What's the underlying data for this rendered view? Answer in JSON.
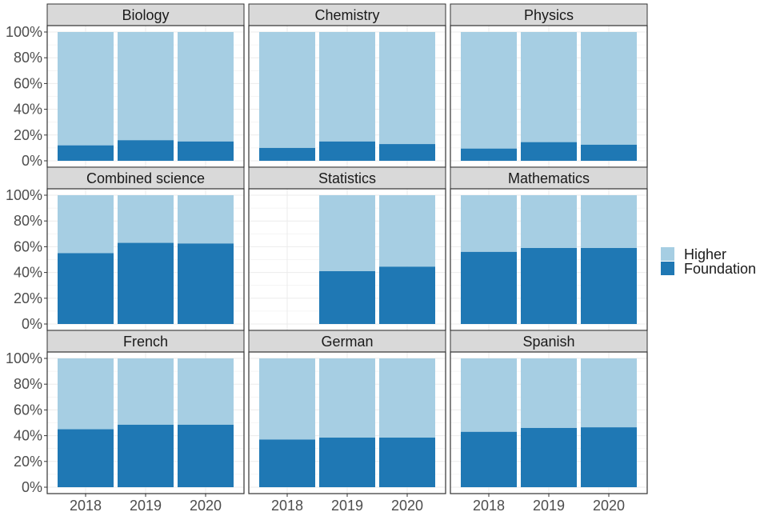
{
  "chart_data": {
    "type": "bar",
    "stacked": true,
    "categories": [
      "2018",
      "2019",
      "2020"
    ],
    "y_tick_labels": [
      "0%",
      "20%",
      "40%",
      "60%",
      "80%",
      "100%"
    ],
    "ylim": [
      0,
      100
    ],
    "legend": {
      "position": "right",
      "entries": [
        {
          "label": "Higher",
          "color": "#a6cee3"
        },
        {
          "label": "Foundation",
          "color": "#1f78b4"
        }
      ]
    },
    "panels": [
      {
        "title": "Biology",
        "foundation": [
          12,
          16,
          15
        ],
        "higher": [
          88,
          84,
          85
        ]
      },
      {
        "title": "Chemistry",
        "foundation": [
          10,
          15,
          13
        ],
        "higher": [
          90,
          85,
          87
        ]
      },
      {
        "title": "Physics",
        "foundation": [
          9.5,
          14.5,
          12.5
        ],
        "higher": [
          90.5,
          85.5,
          87.5
        ]
      },
      {
        "title": "Combined science",
        "foundation": [
          55,
          63,
          62.5
        ],
        "higher": [
          45,
          37,
          37.5
        ]
      },
      {
        "title": "Statistics",
        "foundation": [
          null,
          41,
          44.5
        ],
        "higher": [
          null,
          59,
          55.5
        ]
      },
      {
        "title": "Mathematics",
        "foundation": [
          56,
          59,
          59
        ],
        "higher": [
          44,
          41,
          41
        ]
      },
      {
        "title": "French",
        "foundation": [
          45,
          48.5,
          48.5
        ],
        "higher": [
          55,
          51.5,
          51.5
        ]
      },
      {
        "title": "German",
        "foundation": [
          37,
          38.5,
          38.5
        ],
        "higher": [
          63,
          61.5,
          61.5
        ]
      },
      {
        "title": "Spanish",
        "foundation": [
          43,
          46,
          46.5
        ],
        "higher": [
          57,
          54,
          53.5
        ]
      }
    ],
    "grid": true
  }
}
